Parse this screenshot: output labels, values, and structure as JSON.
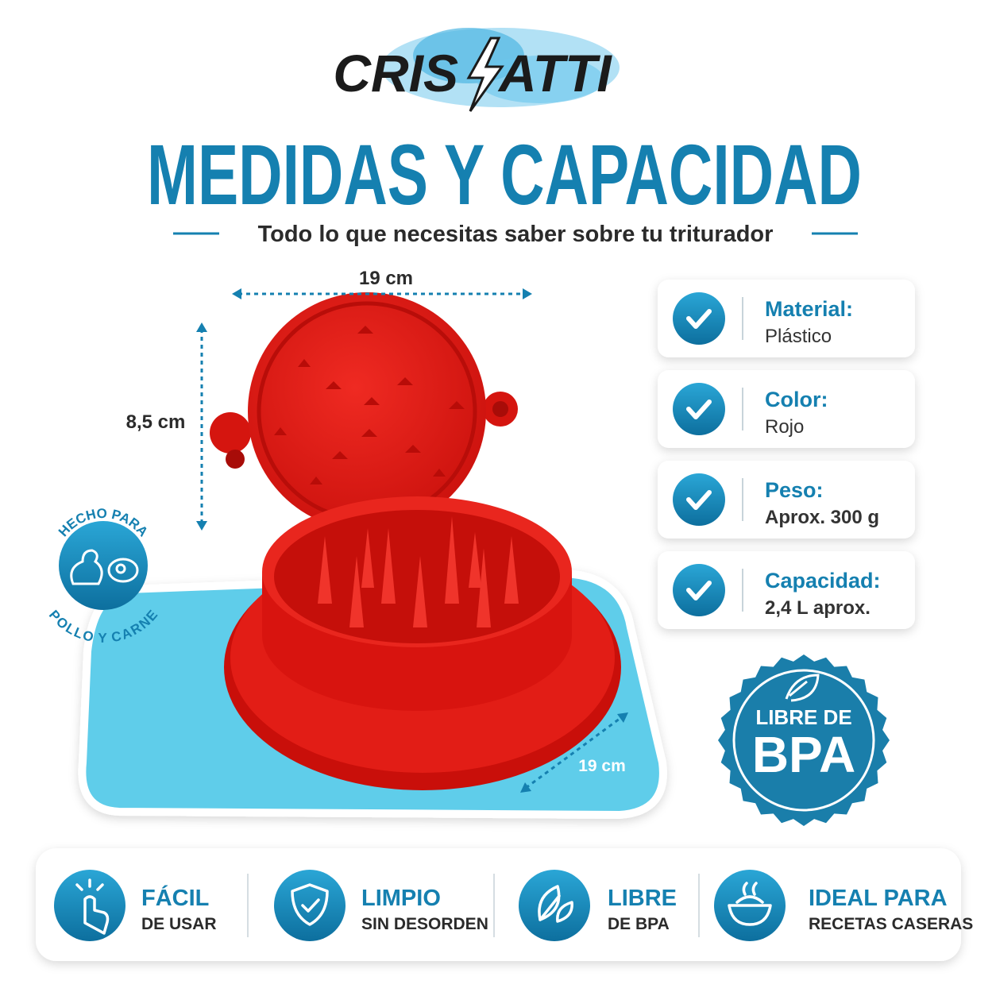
{
  "header": {
    "brand": [
      "CRIS",
      "ATTI"
    ],
    "title": "MEDIDAS Y CAPACIDAD",
    "subtitle": "Todo lo que necesitas saber sobre tu triturador"
  },
  "dimensions": {
    "width": "19 cm",
    "height": "8,5 cm",
    "depth": "19 cm"
  },
  "badge": {
    "top": "HECHO PARA",
    "bottom": "POLLO Y CARNE"
  },
  "specs": [
    {
      "label": "Material:",
      "value": "Plástico"
    },
    {
      "label": "Color:",
      "value": "Rojo"
    },
    {
      "label": "Peso:",
      "value": "Aprox. 300 g"
    },
    {
      "label": "Capacidad:",
      "value": "2,4 L aprox."
    }
  ],
  "seal": {
    "line1": "LIBRE DE",
    "line2": "BPA"
  },
  "features": [
    {
      "title": "FÁCIL",
      "text": "DE USAR"
    },
    {
      "title": "LIMPIO",
      "text": "SIN DESORDEN"
    },
    {
      "title": "LIBRE",
      "text": "DE BPA"
    },
    {
      "title": "IDEAL PARA",
      "text": "RECETAS CASERAS"
    }
  ]
}
